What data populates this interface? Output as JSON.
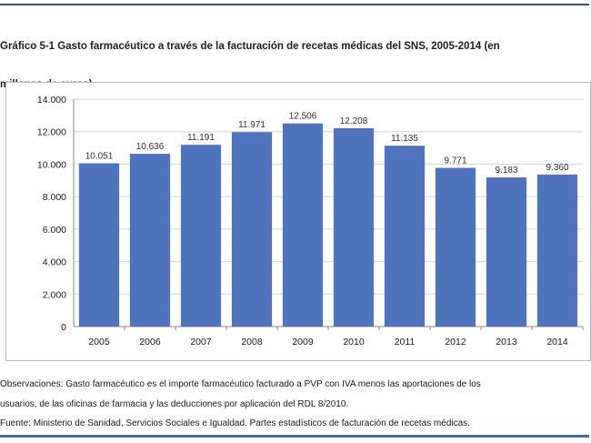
{
  "title_lines": [
    "Gráfico 5-1 Gasto farmacéutico a través de la facturación de recetas médicas del SNS, 2005-2014 (en",
    "millones de euros)"
  ],
  "notes": {
    "observations_1": "Observaciones: Gasto farmacéutico es el importe farmacéutico facturado a PVP con IVA menos las aportaciones de los",
    "observations_2": "usuarios, de las oficinas de farmacia y las deducciones por aplicación del RDL 8/2010.",
    "source": "Fuente: Ministerio de Sanidad, Servicios Sociales e Igualdad. Partes estadísticos de facturación de recetas médicas."
  },
  "chart_data": {
    "type": "bar",
    "title": "Gráfico 5-1 Gasto farmacéutico a través de la facturación de recetas médicas del SNS, 2005-2014 (en millones de euros)",
    "categories": [
      "2005",
      "2006",
      "2007",
      "2008",
      "2009",
      "2010",
      "2011",
      "2012",
      "2013",
      "2014"
    ],
    "values": [
      10051,
      10636,
      11191,
      11971,
      12506,
      12208,
      11135,
      9771,
      9183,
      9360
    ],
    "value_labels": [
      "10.051",
      "10.636",
      "11.191",
      "11.971",
      "12.506",
      "12.208",
      "11.135",
      "9.771",
      "9.183",
      "9.360"
    ],
    "y_ticks": [
      0,
      2000,
      4000,
      6000,
      8000,
      10000,
      12000,
      14000
    ],
    "y_tick_labels": [
      "0",
      "2.000",
      "4.000",
      "6.000",
      "8.000",
      "10.000",
      "12.000",
      "14.000"
    ],
    "ylim": [
      0,
      14000
    ],
    "xlabel": "",
    "ylabel": "",
    "grid": true,
    "legend": "none",
    "bar_color": "#4f74bd",
    "grid_color": "#d6d6d6"
  }
}
